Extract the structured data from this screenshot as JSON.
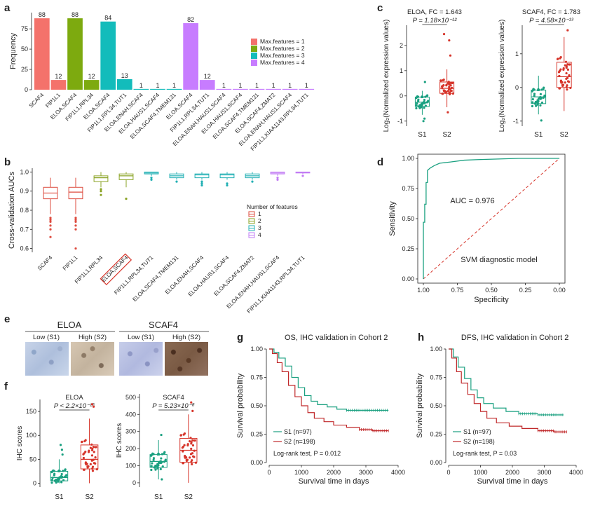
{
  "panel_letters": {
    "a": "a",
    "b": "b",
    "c": "c",
    "d": "d",
    "e": "e",
    "f": "f",
    "g": "g",
    "h": "h"
  },
  "colors": {
    "f1": "#f4726b",
    "f2": "#7daa0f",
    "f3": "#13bcbb",
    "f4": "#c77cff",
    "red": "#d6342a",
    "green": "#1aa080",
    "redline": "#c0282a",
    "tealline": "#1aa080",
    "box_red": "#dd4b3e",
    "box_olive": "#8aa324",
    "box_teal": "#22b0b4",
    "box_violet": "#c27cf4"
  },
  "chart_data": [
    {
      "id": "a",
      "type": "bar",
      "ylabel": "Frequency",
      "ylim": [
        0,
        95
      ],
      "yticks": [
        0,
        25,
        50,
        75
      ],
      "categories": [
        "SCAF4",
        "FIP1L1",
        "ELOA,SCAF4",
        "FIP1L1,RPL34",
        "ELOA,SCAF4",
        "FIP1L1,RPL34,TUT1",
        "ELOA,ENAH,SCAF4",
        "ELOA,HAUS1,SCAF4",
        "ELOA,SCAF4,TMEM131",
        "ELOA,SCAF4",
        "FIP1L1,RPL34,TUT1",
        "ELOA,ENAH,HAUS1,SCAF4",
        "ELOA,HAUS1,SCAF4",
        "ELOA,SCAF4,TMEM131",
        "ELOA,SCAF4,ZMAT2",
        "ELOA,ENAH,HAUS1,SCAF4",
        "FIP1L1,KIAA1143,RPL34,TUT1"
      ],
      "values": [
        88,
        12,
        88,
        12,
        84,
        13,
        1,
        1,
        1,
        82,
        12,
        1,
        1,
        1,
        1,
        1,
        1
      ],
      "groups": [
        1,
        1,
        2,
        2,
        3,
        3,
        3,
        3,
        3,
        4,
        4,
        4,
        4,
        4,
        4,
        4,
        4
      ],
      "legend": [
        "Max.features = 1",
        "Max.features = 2",
        "Max.features = 3",
        "Max.features = 4"
      ],
      "legend_position": "right"
    },
    {
      "id": "b",
      "type": "box",
      "ylabel": "Cross-validation AUCs",
      "ylim": [
        0.58,
        1.02
      ],
      "yticks": [
        0.6,
        0.7,
        0.8,
        0.9,
        1.0
      ],
      "categories": [
        "SCAF4",
        "FIP1L1",
        "FIP1L1,RPL34",
        "ELOA,SCAF4",
        "FIP1L1,RPL34,TUT1",
        "ELOA,SCAF4,TMEM131",
        "ELOA,ENAH,SCAF4",
        "ELOA,HAUS1,SCAF4",
        "ELOA,SCAF4,ZMAT2",
        "ELOA,ENAH,HAUS1,SCAF4",
        "FIP1L1,KIAA1143,RPL34,TUT1"
      ],
      "highlighted": "ELOA,SCAF4",
      "groups": [
        1,
        1,
        2,
        2,
        3,
        3,
        3,
        3,
        3,
        4,
        4
      ],
      "stats": [
        {
          "min": 0.78,
          "q1": 0.86,
          "median": 0.89,
          "q3": 0.92,
          "max": 0.97
        },
        {
          "min": 0.78,
          "q1": 0.86,
          "median": 0.895,
          "q3": 0.92,
          "max": 0.97
        },
        {
          "min": 0.92,
          "q1": 0.95,
          "median": 0.97,
          "q3": 0.98,
          "max": 1.0
        },
        {
          "min": 0.92,
          "q1": 0.96,
          "median": 0.98,
          "q3": 0.99,
          "max": 1.0
        },
        {
          "min": 0.98,
          "q1": 0.99,
          "median": 0.995,
          "q3": 1.0,
          "max": 1.0
        },
        {
          "min": 0.96,
          "q1": 0.97,
          "median": 0.98,
          "q3": 0.99,
          "max": 1.0
        },
        {
          "min": 0.96,
          "q1": 0.97,
          "median": 0.985,
          "q3": 0.99,
          "max": 1.0
        },
        {
          "min": 0.96,
          "q1": 0.97,
          "median": 0.985,
          "q3": 0.99,
          "max": 1.0
        },
        {
          "min": 0.96,
          "q1": 0.97,
          "median": 0.98,
          "q3": 0.99,
          "max": 1.0
        },
        {
          "min": 0.98,
          "q1": 0.99,
          "median": 0.995,
          "q3": 1.0,
          "max": 1.0
        },
        {
          "min": 0.99,
          "q1": 0.995,
          "median": 0.998,
          "q3": 1.0,
          "max": 1.0
        }
      ],
      "outliers": [
        [
          0.7,
          0.72,
          0.74,
          0.75,
          0.76,
          0.66
        ],
        [
          0.7,
          0.72,
          0.74,
          0.75,
          0.76,
          0.6
        ],
        [
          0.88,
          0.9,
          0.91
        ],
        [
          0.86
        ],
        [
          0.96,
          0.97
        ],
        [
          0.95
        ],
        [
          0.93,
          0.94,
          0.95
        ],
        [
          0.93,
          0.94
        ],
        [
          0.95
        ],
        [
          0.96,
          0.97
        ],
        [
          0.98
        ]
      ],
      "legend_title": "Number of features",
      "legend": [
        "1",
        "2",
        "3",
        "4"
      ],
      "legend_position": "right"
    },
    {
      "id": "c1",
      "type": "box",
      "title": "ELOA, FC = 1.643",
      "pvalue": "P = 1.18×10⁻¹²",
      "ylabel": "Log₂(Normalized expression values)",
      "ylim": [
        -1.2,
        2.8
      ],
      "yticks": [
        -1,
        0,
        1,
        2
      ],
      "categories": [
        "S1",
        "S2"
      ],
      "stats": [
        {
          "min": -0.75,
          "q1": -0.42,
          "median": -0.25,
          "q3": -0.05,
          "max": 0.2
        },
        {
          "min": -0.45,
          "q1": 0.1,
          "median": 0.3,
          "q3": 0.55,
          "max": 1.05
        }
      ],
      "outliers": [
        [
          0.55,
          -0.9,
          -1.0
        ],
        [
          1.6,
          2.2,
          2.45,
          -0.65
        ]
      ]
    },
    {
      "id": "c2",
      "type": "box",
      "title": "SCAF4, FC = 1.783",
      "pvalue": "P = 4.58×10⁻¹³",
      "ylabel": "Log₂(Normalized expression values)",
      "ylim": [
        -1.15,
        1.85
      ],
      "yticks": [
        -1,
        0,
        1
      ],
      "categories": [
        "S1",
        "S2"
      ],
      "stats": [
        {
          "min": -0.8,
          "q1": -0.48,
          "median": -0.28,
          "q3": -0.08,
          "max": 0.35
        },
        {
          "min": -0.7,
          "q1": 0.0,
          "median": 0.32,
          "q3": 0.75,
          "max": 1.5
        }
      ],
      "outliers": [
        [
          -0.98
        ],
        [
          1.7
        ]
      ]
    },
    {
      "id": "d",
      "type": "line",
      "title": "SVM diagnostic model",
      "annotation": "AUC = 0.976",
      "xlabel": "Specificity",
      "ylabel": "Sensitivity",
      "xlim": [
        1.0,
        0.0
      ],
      "ylim": [
        0,
        1.0
      ],
      "xticks": [
        "1.00",
        "0.75",
        "0.50",
        "0.25",
        "0.00"
      ],
      "yticks": [
        "0.00",
        "0.25",
        "0.50",
        "0.75",
        "1.00"
      ],
      "roc": [
        [
          1.0,
          0.0
        ],
        [
          1.0,
          0.47
        ],
        [
          0.99,
          0.47
        ],
        [
          0.99,
          0.62
        ],
        [
          0.98,
          0.62
        ],
        [
          0.98,
          0.8
        ],
        [
          0.97,
          0.8
        ],
        [
          0.97,
          0.9
        ],
        [
          0.95,
          0.92
        ],
        [
          0.92,
          0.94
        ],
        [
          0.88,
          0.96
        ],
        [
          0.8,
          0.97
        ],
        [
          0.7,
          0.985
        ],
        [
          0.6,
          0.99
        ],
        [
          0.45,
          0.995
        ],
        [
          0.3,
          1.0
        ],
        [
          0.0,
          1.0
        ]
      ]
    },
    {
      "id": "f1",
      "type": "box",
      "title": "ELOA",
      "pvalue": "P < 2.2×10⁻¹⁶",
      "ylabel": "IHC scores",
      "ylim": [
        -8,
        175
      ],
      "yticks": [
        0,
        50,
        100,
        150
      ],
      "categories": [
        "S1",
        "S2"
      ],
      "stats": [
        {
          "min": 0,
          "q1": 5,
          "median": 12,
          "q3": 25,
          "max": 50
        },
        {
          "min": 0,
          "q1": 30,
          "median": 50,
          "q3": 80,
          "max": 135
        }
      ],
      "outliers": [
        [
          60,
          70,
          80
        ],
        [
          160,
          165
        ]
      ]
    },
    {
      "id": "f2",
      "type": "box",
      "title": "SCAF4",
      "pvalue": "P = 5.23×10⁻⁸",
      "ylabel": "IHC scores",
      "ylim": [
        -25,
        520
      ],
      "yticks": [
        0,
        100,
        200,
        300,
        400,
        500
      ],
      "categories": [
        "S1",
        "S2"
      ],
      "stats": [
        {
          "min": 20,
          "q1": 90,
          "median": 125,
          "q3": 165,
          "max": 250
        },
        {
          "min": 0,
          "q1": 120,
          "median": 190,
          "q3": 260,
          "max": 400
        }
      ],
      "outliers": [
        [
          20,
          280
        ],
        [
          420,
          470
        ]
      ]
    },
    {
      "id": "g",
      "type": "line",
      "title": "OS, IHC validation in Cohort 2",
      "xlabel": "Survival time in days",
      "ylabel": "Survival probability",
      "xlim": [
        0,
        4000
      ],
      "ylim": [
        0,
        1.0
      ],
      "xticks": [
        0,
        1000,
        2000,
        3000,
        4000
      ],
      "yticks": [
        "0.00",
        "0.25",
        "0.50",
        "0.75",
        "1.00"
      ],
      "series": [
        {
          "name": "S1 (n=97)",
          "points": [
            [
              0,
              1.0
            ],
            [
              150,
              0.97
            ],
            [
              300,
              0.92
            ],
            [
              500,
              0.85
            ],
            [
              700,
              0.75
            ],
            [
              900,
              0.66
            ],
            [
              1100,
              0.59
            ],
            [
              1300,
              0.54
            ],
            [
              1500,
              0.51
            ],
            [
              1800,
              0.49
            ],
            [
              2100,
              0.47
            ],
            [
              2400,
              0.46
            ],
            [
              3000,
              0.46
            ],
            [
              3700,
              0.46
            ]
          ]
        },
        {
          "name": "S2 (n=198)",
          "points": [
            [
              0,
              1.0
            ],
            [
              100,
              0.96
            ],
            [
              250,
              0.88
            ],
            [
              400,
              0.8
            ],
            [
              600,
              0.68
            ],
            [
              800,
              0.58
            ],
            [
              1000,
              0.5
            ],
            [
              1200,
              0.44
            ],
            [
              1400,
              0.39
            ],
            [
              1700,
              0.36
            ],
            [
              2000,
              0.33
            ],
            [
              2400,
              0.31
            ],
            [
              2800,
              0.29
            ],
            [
              3200,
              0.28
            ],
            [
              3700,
              0.28
            ]
          ]
        }
      ],
      "annotation": "Log-rank test, P = 0.012"
    },
    {
      "id": "h",
      "type": "line",
      "title": "DFS, IHC validation in Cohort 2",
      "xlabel": "Survival time in days",
      "ylabel": "Survival probability",
      "xlim": [
        0,
        4000
      ],
      "ylim": [
        0,
        1.0
      ],
      "xticks": [
        0,
        1000,
        2000,
        3000,
        4000
      ],
      "yticks": [
        "0.00",
        "0.25",
        "0.50",
        "0.75",
        "1.00"
      ],
      "series": [
        {
          "name": "S1 (n=97)",
          "points": [
            [
              0,
              1.0
            ],
            [
              150,
              0.93
            ],
            [
              300,
              0.84
            ],
            [
              500,
              0.74
            ],
            [
              700,
              0.64
            ],
            [
              900,
              0.57
            ],
            [
              1100,
              0.52
            ],
            [
              1400,
              0.48
            ],
            [
              1800,
              0.45
            ],
            [
              2200,
              0.43
            ],
            [
              2800,
              0.42
            ],
            [
              3600,
              0.42
            ]
          ]
        },
        {
          "name": "S2 (n=198)",
          "points": [
            [
              0,
              1.0
            ],
            [
              100,
              0.92
            ],
            [
              250,
              0.8
            ],
            [
              400,
              0.7
            ],
            [
              600,
              0.6
            ],
            [
              800,
              0.52
            ],
            [
              1000,
              0.45
            ],
            [
              1200,
              0.39
            ],
            [
              1500,
              0.35
            ],
            [
              1900,
              0.32
            ],
            [
              2300,
              0.3
            ],
            [
              2800,
              0.28
            ],
            [
              3300,
              0.27
            ],
            [
              3700,
              0.27
            ]
          ]
        }
      ],
      "annotation": "Log-rank test, P = 0.03"
    }
  ],
  "panel_e": {
    "eloa": {
      "title": "ELOA",
      "low": "Low (S1)",
      "high": "High (S2)"
    },
    "scaf4": {
      "title": "SCAF4",
      "low": "Low (S1)",
      "high": "High (S2)"
    }
  }
}
